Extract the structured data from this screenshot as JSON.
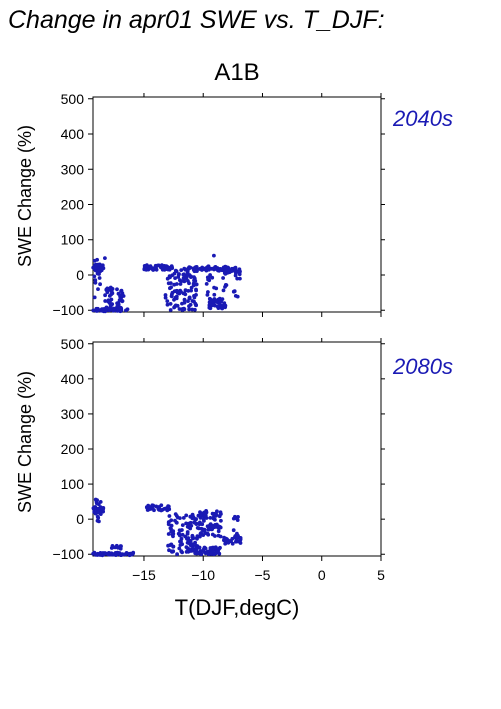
{
  "page": {
    "title": "Change in apr01 SWE vs. T_DJF:",
    "scenario": "A1B",
    "accent_color": "#1a1ab4"
  },
  "chart_data": [
    {
      "type": "scatter",
      "period_label": "2040s",
      "title": "A1B",
      "ylabel": "SWE Change (%)",
      "xlabel": "",
      "xlim": [
        -19.3,
        5
      ],
      "ylim": [
        -105,
        505
      ],
      "yticks": [
        -100,
        0,
        100,
        200,
        300,
        400,
        500
      ],
      "xticks": [
        -15,
        -10,
        -5,
        0,
        5
      ],
      "xtick_labels_shown": false,
      "marker_color": "#1a1ab4",
      "clusters": [
        {
          "x": [
            -19.3,
            -18.4
          ],
          "y": [
            10,
            30
          ],
          "n": 40
        },
        {
          "x": [
            -19.2,
            -18.7
          ],
          "y": [
            -100,
            50
          ],
          "n": 16
        },
        {
          "x": [
            -19.3,
            -16.3
          ],
          "y": [
            -103,
            -95
          ],
          "n": 45
        },
        {
          "x": [
            -18.3,
            -17.6
          ],
          "y": [
            -100,
            -35
          ],
          "n": 30
        },
        {
          "x": [
            -17.3,
            -16.7
          ],
          "y": [
            -100,
            -40
          ],
          "n": 25
        },
        {
          "x": [
            -15.0,
            -12.6
          ],
          "y": [
            14,
            28
          ],
          "n": 45
        },
        {
          "x": [
            -13.2,
            -10.5
          ],
          "y": [
            -100,
            15
          ],
          "n": 110
        },
        {
          "x": [
            -11.6,
            -7.8
          ],
          "y": [
            12,
            25
          ],
          "n": 50
        },
        {
          "x": [
            -9.5,
            -8.0
          ],
          "y": [
            -95,
            -65
          ],
          "n": 45
        },
        {
          "x": [
            -10.0,
            -8.0
          ],
          "y": [
            -60,
            20
          ],
          "n": 20
        },
        {
          "x": [
            -8.2,
            -6.8
          ],
          "y": [
            5,
            22
          ],
          "n": 22
        },
        {
          "x": [
            -7.8,
            -6.9
          ],
          "y": [
            -65,
            5
          ],
          "n": 8
        }
      ],
      "outliers": [
        [
          -9.1,
          55
        ],
        [
          -18.3,
          48
        ]
      ]
    },
    {
      "type": "scatter",
      "period_label": "2080s",
      "title": "",
      "ylabel": "SWE Change (%)",
      "xlabel": "T(DJF,degC)",
      "xlim": [
        -19.3,
        5
      ],
      "ylim": [
        -105,
        505
      ],
      "yticks": [
        -100,
        0,
        100,
        200,
        300,
        400,
        500
      ],
      "xticks": [
        -15,
        -10,
        -5,
        0,
        5
      ],
      "xtick_labels_shown": true,
      "marker_color": "#1a1ab4",
      "clusters": [
        {
          "x": [
            -19.3,
            -18.4
          ],
          "y": [
            20,
            35
          ],
          "n": 25
        },
        {
          "x": [
            -19.2,
            -18.6
          ],
          "y": [
            -10,
            60
          ],
          "n": 20
        },
        {
          "x": [
            -19.3,
            -15.8
          ],
          "y": [
            -103,
            -95
          ],
          "n": 55
        },
        {
          "x": [
            -17.8,
            -16.9
          ],
          "y": [
            -85,
            -75
          ],
          "n": 10
        },
        {
          "x": [
            -14.8,
            -12.8
          ],
          "y": [
            25,
            40
          ],
          "n": 35
        },
        {
          "x": [
            -13.0,
            -10.5
          ],
          "y": [
            -95,
            15
          ],
          "n": 100
        },
        {
          "x": [
            -10.5,
            -8.5
          ],
          "y": [
            -50,
            30
          ],
          "n": 80
        },
        {
          "x": [
            -11.0,
            -8.5
          ],
          "y": [
            -100,
            -80
          ],
          "n": 50
        },
        {
          "x": [
            -8.3,
            -6.8
          ],
          "y": [
            -70,
            -50
          ],
          "n": 25
        },
        {
          "x": [
            -7.5,
            -6.9
          ],
          "y": [
            -50,
            10
          ],
          "n": 10
        }
      ],
      "outliers": [
        [
          -10.6,
          0
        ],
        [
          -12.2,
          -100
        ]
      ]
    }
  ]
}
